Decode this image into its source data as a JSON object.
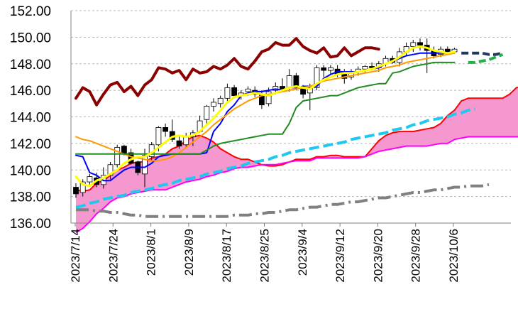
{
  "chart_data": {
    "type": "line",
    "title": "",
    "xlabel": "",
    "ylabel": "",
    "ylim": [
      136,
      152
    ],
    "y_ticks": [
      "136.00",
      "138.00",
      "140.00",
      "142.00",
      "144.00",
      "146.00",
      "148.00",
      "150.00",
      "152.00"
    ],
    "x_ticks": [
      "2023/7/14",
      "2023/7/24",
      "2023/8/1",
      "2023/8/9",
      "2023/8/17",
      "2023/8/25",
      "2023/9/4",
      "2023/9/12",
      "2023/9/20",
      "2023/9/28",
      "2023/10/6"
    ],
    "grid": "horizontal dashed",
    "colors": {
      "cloud": "#f598cf",
      "span_a": "#ff0000",
      "span_b": "#ff00ff",
      "lagging": "#8b0000",
      "short_ma": "#ffff00",
      "tenkan": "#0000ff",
      "kijun": "#ff9900",
      "mid_ma": "#228b22",
      "long_ma": "#808080",
      "forecast": "#1ec8f0",
      "candle_up": "#ffffff",
      "candle_down": "#000000"
    },
    "candles": [
      [
        138.7,
        139.0,
        137.9,
        138.2
      ],
      [
        138.3,
        139.3,
        138.0,
        139.1
      ],
      [
        139.1,
        139.7,
        138.9,
        139.5
      ],
      [
        139.4,
        139.8,
        138.7,
        138.9
      ],
      [
        138.9,
        140.2,
        138.6,
        139.6
      ],
      [
        139.6,
        140.6,
        139.3,
        140.4
      ],
      [
        140.4,
        141.9,
        140.2,
        141.7
      ],
      [
        141.8,
        141.9,
        141.1,
        141.2
      ],
      [
        141.3,
        141.6,
        140.4,
        140.5
      ],
      [
        140.6,
        140.7,
        139.6,
        139.8
      ],
      [
        139.7,
        141.6,
        138.7,
        141.1
      ],
      [
        141.0,
        142.1,
        140.7,
        141.9
      ],
      [
        141.9,
        143.3,
        141.4,
        143.2
      ],
      [
        143.2,
        143.5,
        142.5,
        142.9
      ],
      [
        142.9,
        143.8,
        142.1,
        142.3
      ],
      [
        142.2,
        142.5,
        141.6,
        141.8
      ],
      [
        141.9,
        142.8,
        141.7,
        142.5
      ],
      [
        142.5,
        143.0,
        141.8,
        142.8
      ],
      [
        142.9,
        144.1,
        142.8,
        143.7
      ],
      [
        143.8,
        144.9,
        143.5,
        144.8
      ],
      [
        144.8,
        145.4,
        144.4,
        145.1
      ],
      [
        145.0,
        145.6,
        144.7,
        145.4
      ],
      [
        145.4,
        146.5,
        145.1,
        146.2
      ],
      [
        146.2,
        146.4,
        145.4,
        145.6
      ],
      [
        145.6,
        146.0,
        145.3,
        145.8
      ],
      [
        145.9,
        146.3,
        145.6,
        146.1
      ],
      [
        146.0,
        146.3,
        145.5,
        145.7
      ],
      [
        145.7,
        146.0,
        144.6,
        144.9
      ],
      [
        145.0,
        146.2,
        144.8,
        145.9
      ],
      [
        146.0,
        146.6,
        145.7,
        146.3
      ],
      [
        146.3,
        146.9,
        145.9,
        146.1
      ],
      [
        146.2,
        147.6,
        145.9,
        147.1
      ],
      [
        147.1,
        147.3,
        146.0,
        146.3
      ],
      [
        146.2,
        146.4,
        145.4,
        145.7
      ],
      [
        145.8,
        146.5,
        144.5,
        146.2
      ],
      [
        146.2,
        147.9,
        146.0,
        147.7
      ],
      [
        147.7,
        147.9,
        147.0,
        147.5
      ],
      [
        147.5,
        147.9,
        147.2,
        147.7
      ],
      [
        147.6,
        147.9,
        147.0,
        147.2
      ],
      [
        147.3,
        147.6,
        146.5,
        146.9
      ],
      [
        147.0,
        147.6,
        146.8,
        147.4
      ],
      [
        147.4,
        147.8,
        147.1,
        147.6
      ],
      [
        147.6,
        147.9,
        147.3,
        147.8
      ],
      [
        147.8,
        148.1,
        147.5,
        147.7
      ],
      [
        147.7,
        148.2,
        147.4,
        148.0
      ],
      [
        148.0,
        148.6,
        147.8,
        148.4
      ],
      [
        148.4,
        148.6,
        148.0,
        148.1
      ],
      [
        148.1,
        149.2,
        147.8,
        148.9
      ],
      [
        148.9,
        149.6,
        148.6,
        149.3
      ],
      [
        149.3,
        149.8,
        148.9,
        149.6
      ],
      [
        149.6,
        149.9,
        149.0,
        149.4
      ],
      [
        149.4,
        149.9,
        147.3,
        149.0
      ],
      [
        149.0,
        149.3,
        148.4,
        148.6
      ],
      [
        148.7,
        149.3,
        148.5,
        149.1
      ],
      [
        149.1,
        149.3,
        148.8,
        148.9
      ],
      [
        148.9,
        149.2,
        148.8,
        149.1
      ]
    ],
    "series": [
      {
        "key": "tenkan",
        "color": "#0000ff",
        "width": 2,
        "dash": "",
        "x0": 0,
        "values": [
          141.1,
          141.0,
          139.8,
          139.6,
          139.2,
          139.2,
          139.6,
          140.0,
          140.2,
          140.2,
          140.2,
          140.5,
          141.0,
          141.1,
          141.2,
          141.2,
          141.2,
          141.2,
          141.2,
          141.3,
          142.9,
          143.5,
          144.4,
          144.9,
          145.6,
          145.8,
          145.9,
          145.9,
          146.0,
          146.1,
          146.0,
          146.2,
          146.2,
          146.3,
          146.3,
          146.3,
          146.9,
          147.2,
          147.4,
          147.4,
          147.4,
          147.4,
          147.5,
          147.6,
          147.7,
          148.0,
          148.2,
          148.4,
          148.6,
          148.7,
          148.8,
          148.8,
          148.8,
          148.8,
          148.8,
          148.8
        ]
      },
      {
        "key": "kijun",
        "color": "#ff9900",
        "width": 2,
        "dash": "",
        "x0": 0,
        "values": [
          142.5,
          142.3,
          142.2,
          142.0,
          141.8,
          141.6,
          141.4,
          141.2,
          141.0,
          140.9,
          140.8,
          140.7,
          140.7,
          140.8,
          141.0,
          141.3,
          141.7,
          142.1,
          142.5,
          142.9,
          143.4,
          143.8,
          144.2,
          144.6,
          144.9,
          145.2,
          145.4,
          145.6,
          145.7,
          145.8,
          145.9,
          146.0,
          146.1,
          146.2,
          146.3,
          146.5,
          146.7,
          146.8,
          146.9,
          147.0,
          147.1,
          147.2,
          147.3,
          147.4,
          147.5,
          147.7,
          147.8,
          147.9,
          148.1,
          148.2,
          148.3,
          148.4,
          148.5,
          148.6,
          148.7,
          148.8
        ]
      },
      {
        "key": "mid_ma",
        "color": "#228b22",
        "width": 2,
        "dash": "",
        "x0": 0,
        "values": [
          141.2,
          141.2,
          141.2,
          141.2,
          141.2,
          141.2,
          141.2,
          141.2,
          141.2,
          141.2,
          141.2,
          141.2,
          141.2,
          141.2,
          141.2,
          141.2,
          141.2,
          141.2,
          141.2,
          141.5,
          141.8,
          142.0,
          142.1,
          142.2,
          142.3,
          142.4,
          142.5,
          142.6,
          142.7,
          142.7,
          142.7,
          143.5,
          144.7,
          145.2,
          145.3,
          145.4,
          145.5,
          145.6,
          145.6,
          145.8,
          146.0,
          146.2,
          146.3,
          146.4,
          146.5,
          146.5,
          147.3,
          147.4,
          147.6,
          147.8,
          147.9,
          148.0,
          148.1,
          148.1,
          148.1,
          148.1
        ]
      },
      {
        "key": "short_ma",
        "color": "#ffff00",
        "width": 3,
        "dash": "",
        "x0": 0,
        "values": [
          139.5,
          138.9,
          138.8,
          139.2,
          139.4,
          139.7,
          140.0,
          140.5,
          140.8,
          141.0,
          141.0,
          141.3,
          141.7,
          142.1,
          142.5,
          142.6,
          142.5,
          142.6,
          142.9,
          143.4,
          143.9,
          144.5,
          145.1,
          145.5,
          145.6,
          145.7,
          145.8,
          145.7,
          145.6,
          145.8,
          146.0,
          146.2,
          146.3,
          146.2,
          146.1,
          146.5,
          146.8,
          147.0,
          147.2,
          147.3,
          147.3,
          147.4,
          147.5,
          147.6,
          147.8,
          148.0,
          148.2,
          148.5,
          148.9,
          149.2,
          149.3,
          149.2,
          149.0,
          148.9,
          148.8,
          148.9
        ]
      },
      {
        "key": "lagging",
        "color": "#8b0000",
        "width": 4,
        "dash": "",
        "x0": 0,
        "values": [
          145.4,
          146.2,
          145.9,
          144.9,
          145.7,
          146.4,
          146.6,
          145.9,
          146.3,
          145.6,
          146.4,
          146.8,
          147.7,
          147.6,
          147.3,
          147.5,
          146.8,
          147.6,
          147.3,
          147.4,
          147.8,
          147.6,
          147.9,
          148.4,
          147.8,
          147.6,
          148.2,
          148.9,
          149.1,
          149.6,
          149.4,
          149.4,
          149.9,
          149.3,
          149.0,
          148.8,
          149.2,
          148.5,
          148.6,
          149.2,
          148.6,
          148.9,
          149.2,
          149.2,
          149.1
        ]
      },
      {
        "key": "long_ma",
        "color": "#808080",
        "width": 4,
        "dash": "18,6,3,6",
        "x0": 0,
        "values": [
          137.0,
          137.0,
          137.0,
          136.9,
          136.9,
          136.8,
          136.8,
          136.7,
          136.6,
          136.6,
          136.5,
          136.5,
          136.5,
          136.5,
          136.5,
          136.5,
          136.5,
          136.5,
          136.5,
          136.5,
          136.5,
          136.5,
          136.5,
          136.6,
          136.6,
          136.6,
          136.7,
          136.7,
          136.8,
          136.8,
          136.9,
          137.0,
          137.0,
          137.1,
          137.2,
          137.2,
          137.3,
          137.4,
          137.4,
          137.5,
          137.6,
          137.6,
          137.7,
          137.8,
          137.9,
          137.9,
          138.0,
          138.1,
          138.2,
          138.3,
          138.3,
          138.4,
          138.5,
          138.5,
          138.6,
          138.7,
          138.7,
          138.8,
          138.8,
          138.8,
          138.9
        ]
      },
      {
        "key": "forecast",
        "color": "#1ec8f0",
        "width": 4,
        "dash": "14,6",
        "x0": 0,
        "values": [
          137.2,
          137.3,
          137.5,
          137.6,
          137.8,
          137.9,
          138.0,
          138.1,
          138.3,
          138.4,
          138.5,
          138.6,
          138.8,
          138.9,
          139.0,
          139.2,
          139.3,
          139.4,
          139.5,
          139.7,
          139.8,
          139.9,
          140.1,
          140.2,
          140.3,
          140.5,
          140.6,
          140.7,
          140.8,
          141.0,
          141.1,
          141.3,
          141.4,
          141.5,
          141.6,
          141.7,
          141.8,
          141.9,
          142.0,
          142.1,
          142.3,
          142.4,
          142.5,
          142.6,
          142.7,
          142.8,
          143.0,
          143.1,
          143.2,
          143.4,
          143.5,
          143.7,
          143.8,
          143.9,
          144.0,
          144.2,
          144.3,
          144.5,
          144.6
        ]
      },
      {
        "key": "forecast_navy",
        "color": "#1f3864",
        "width": 4,
        "dash": "10,5",
        "x0": 56,
        "values": [
          148.8,
          148.8,
          148.8,
          148.8,
          148.7,
          148.7,
          148.8
        ]
      },
      {
        "key": "forecast_green",
        "color": "#22b04a",
        "width": 4,
        "dash": "10,5",
        "x0": 57,
        "values": [
          148.1,
          148.1,
          148.2,
          148.3,
          148.5,
          148.7
        ]
      }
    ],
    "span_a": [
      138.5,
      138.4,
      138.5,
      139.0,
      139.2,
      139.6,
      140.0,
      140.2,
      140.5,
      140.6,
      140.6,
      140.9,
      141.0,
      141.2,
      141.6,
      141.8,
      142.2,
      142.5,
      142.6,
      142.4,
      142.1,
      141.6,
      141.3,
      141.0,
      140.8,
      140.8,
      140.6,
      140.4,
      140.3,
      140.3,
      140.4,
      140.6,
      140.8,
      140.8,
      140.8,
      141.0,
      141.0,
      141.1,
      141.1,
      141.0,
      141.0,
      141.0,
      141.0,
      141.6,
      142.2,
      142.6,
      142.8,
      142.9,
      142.9,
      142.9,
      143.0,
      143.1,
      143.2,
      143.5,
      144.1,
      144.5,
      145.2,
      145.4,
      145.4,
      145.4,
      145.4,
      145.4,
      145.4,
      145.7,
      146.2,
      146.3
    ],
    "span_b": [
      135.3,
      135.6,
      136.1,
      136.7,
      137.1,
      137.6,
      137.9,
      138.0,
      138.2,
      138.3,
      138.4,
      138.5,
      138.5,
      138.5,
      138.7,
      138.9,
      139.1,
      139.2,
      139.3,
      139.5,
      139.6,
      139.8,
      139.9,
      140.1,
      140.2,
      140.2,
      140.3,
      140.4,
      140.4,
      140.4,
      140.5,
      140.6,
      140.7,
      140.7,
      140.7,
      140.9,
      140.9,
      140.9,
      140.9,
      140.9,
      140.9,
      140.9,
      141.0,
      141.2,
      141.4,
      141.5,
      141.6,
      141.7,
      141.8,
      141.8,
      141.8,
      141.8,
      141.9,
      142.0,
      142.0,
      142.3,
      142.4,
      142.5,
      142.5,
      142.5,
      142.5,
      142.5,
      142.5,
      142.5,
      142.5,
      142.5
    ]
  }
}
